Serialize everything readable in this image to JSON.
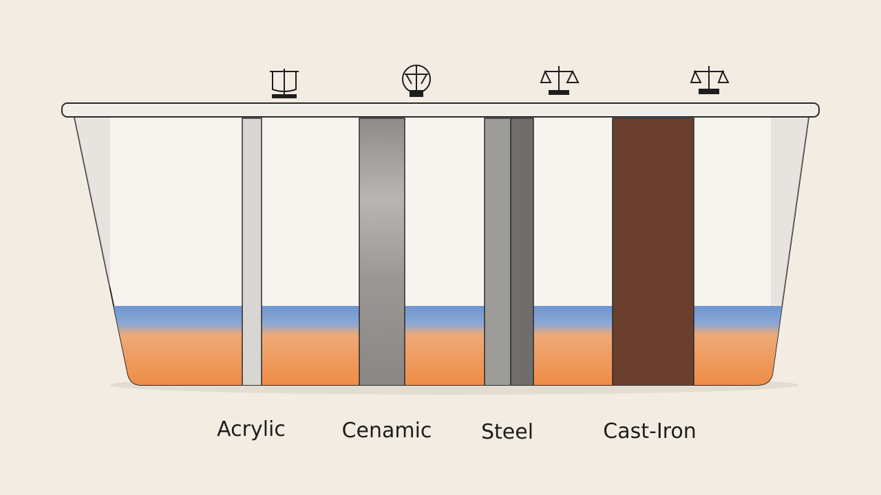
{
  "labels": [
    "Acrylic",
    "Cenamic",
    "Steel",
    "Cast-Iron"
  ]
}
